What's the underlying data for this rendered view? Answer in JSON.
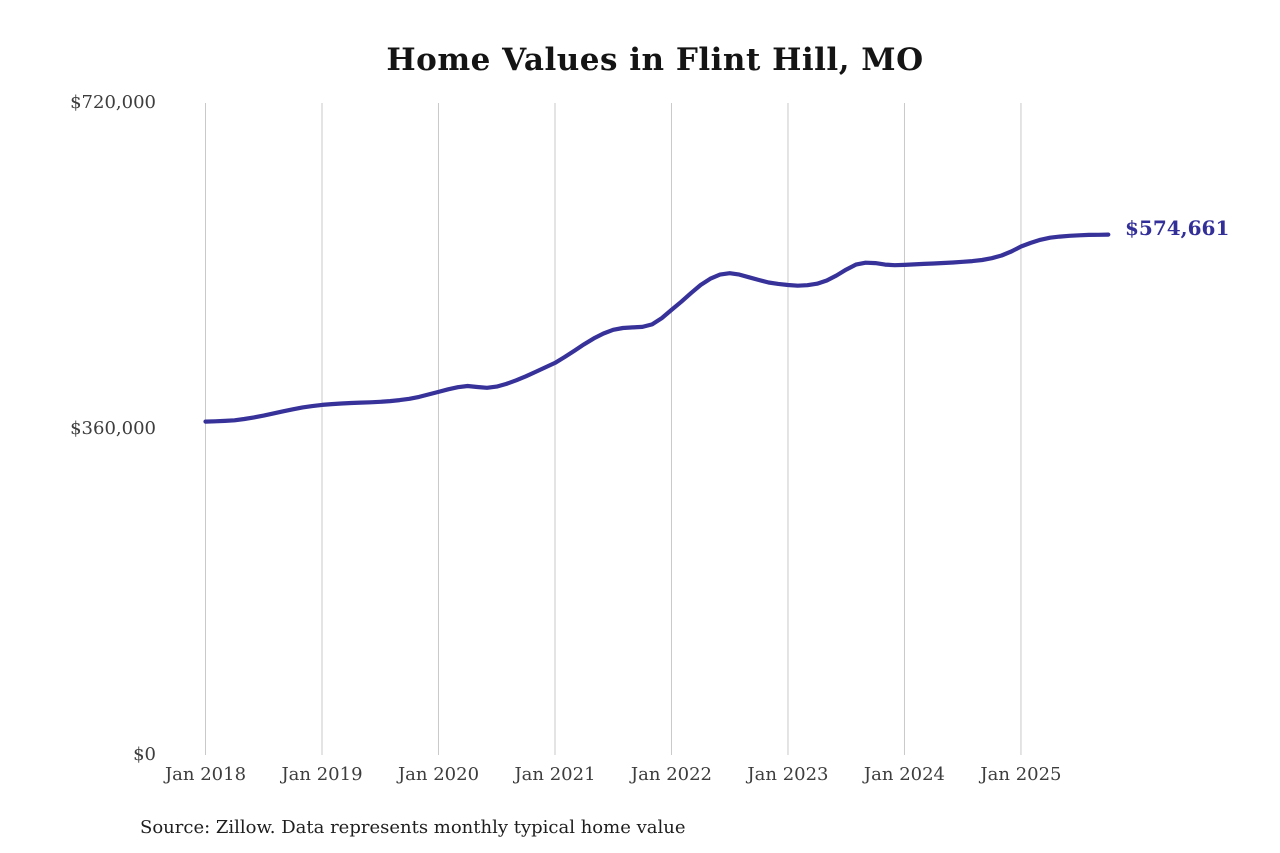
{
  "chart": {
    "title": "Home Values in Flint Hill, MO",
    "end_label": "$574,661",
    "source_note": "Source: Zillow. Data represents monthly typical home value"
  },
  "colors": {
    "line": "#37319a",
    "end_label": "#332f99",
    "gridline": "#c9c9c9",
    "axis_text": "#3d3d3d",
    "title_text": "#141414",
    "source_text": "#1e1e1e",
    "background": "#ffffff"
  },
  "chart_data": {
    "type": "line",
    "title": "Home Values in Flint Hill, MO",
    "series": [
      {
        "name": "Monthly typical home value",
        "x_start": "Jan 2018",
        "x_end": "Oct 2025",
        "x_interval": "monthly",
        "values": [
          368200,
          368500,
          368900,
          369600,
          371000,
          372800,
          374800,
          377200,
          379600,
          381800,
          383800,
          385300,
          386600,
          387500,
          388200,
          388700,
          389100,
          389500,
          390000,
          390800,
          391900,
          393300,
          395500,
          398200,
          401000,
          403800,
          406200,
          407500,
          406400,
          405500,
          406800,
          409800,
          413800,
          418200,
          423000,
          428000,
          433000,
          439500,
          446500,
          453500,
          460000,
          465500,
          469500,
          471500,
          472200,
          472800,
          475500,
          482500,
          491500,
          500500,
          510000,
          519000,
          526000,
          530500,
          532000,
          530500,
          527500,
          524500,
          521800,
          520200,
          519000,
          518200,
          518800,
          520500,
          524000,
          529500,
          536000,
          541500,
          543600,
          543200,
          541500,
          540900,
          541200,
          541800,
          542300,
          542800,
          543300,
          543900,
          544600,
          545400,
          546600,
          548600,
          551600,
          556000,
          561500,
          565500,
          568900,
          571200,
          572500,
          573300,
          573900,
          574300,
          574500,
          574661
        ]
      }
    ],
    "final_value": 574661,
    "final_value_label": "$574,661",
    "x_ticks": [
      "Jan 2018",
      "Jan 2019",
      "Jan 2020",
      "Jan 2021",
      "Jan 2022",
      "Jan 2023",
      "Jan 2024",
      "Jan 2025"
    ],
    "y_ticks": [
      {
        "label": "$0",
        "value": 0
      },
      {
        "label": "$360,000",
        "value": 360000
      },
      {
        "label": "$720,000",
        "value": 720000
      }
    ],
    "ylim": [
      0,
      720000
    ],
    "grid": "vertical-yearly-gridlines-only",
    "legend": "none",
    "source": "Source: Zillow. Data represents monthly typical home value"
  }
}
